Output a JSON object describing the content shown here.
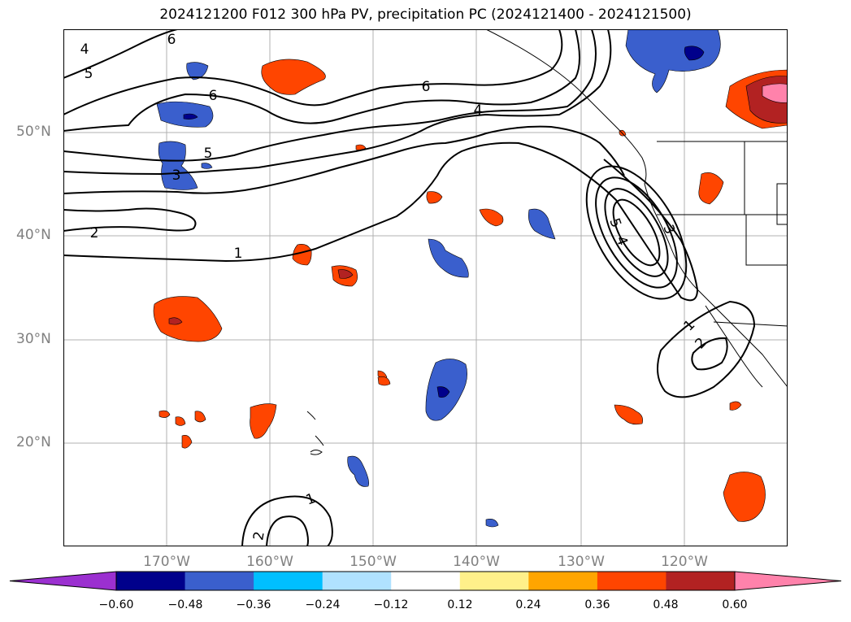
{
  "title": "2024121200 F012 300 hPa PV, precipitation PC (2024121400 - 2024121500)",
  "map": {
    "lat_labels": [
      "50°N",
      "40°N",
      "30°N",
      "20°N"
    ],
    "lon_labels": [
      "170°W",
      "160°W",
      "150°W",
      "140°W",
      "130°W",
      "120°W"
    ],
    "contour_labels": [
      "4",
      "5",
      "6",
      "6",
      "5",
      "3",
      "2",
      "1",
      "6",
      "4",
      "5",
      "4",
      "3",
      "1",
      "2",
      "1",
      "2"
    ]
  },
  "colorbar": {
    "ticks": [
      "−0.60",
      "−0.48",
      "−0.36",
      "−0.24",
      "−0.12",
      "0.12",
      "0.24",
      "0.36",
      "0.48",
      "0.60"
    ],
    "colors": [
      "#9b30d0",
      "#00008b",
      "#3a5fcd",
      "#00bfff",
      "#b0e2ff",
      "#ffffff",
      "#fff08a",
      "#ffa500",
      "#ff4500",
      "#b22222",
      "#ff82ab"
    ]
  }
}
